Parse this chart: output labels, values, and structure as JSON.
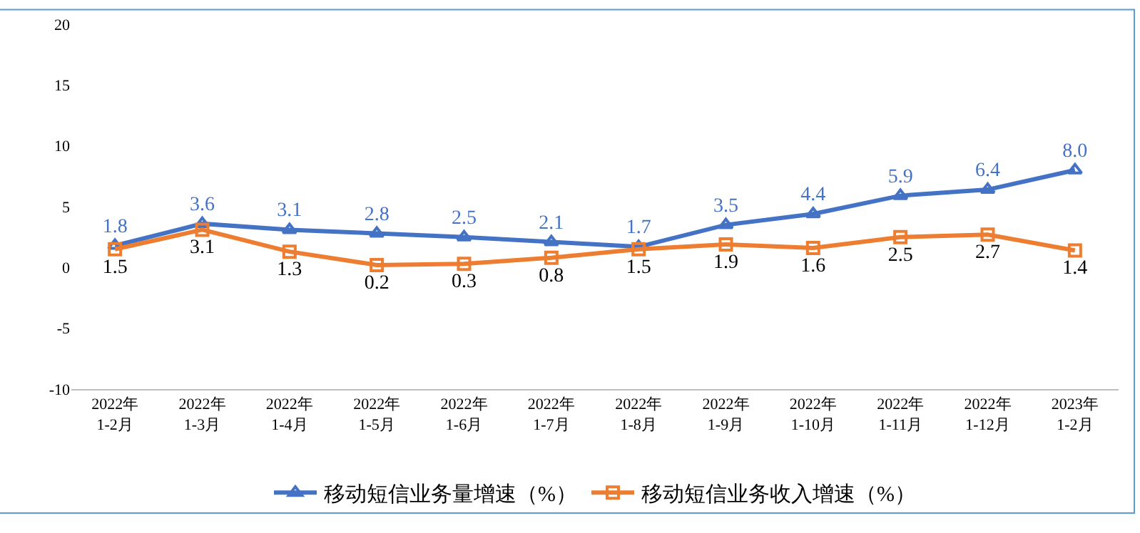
{
  "chart_data": {
    "type": "line",
    "categories": [
      "2022年\n1-2月",
      "2022年\n1-3月",
      "2022年\n1-4月",
      "2022年\n1-5月",
      "2022年\n1-6月",
      "2022年\n1-7月",
      "2022年\n1-8月",
      "2022年\n1-9月",
      "2022年\n1-10月",
      "2022年\n1-11月",
      "2022年\n1-12月",
      "2023年\n1-2月"
    ],
    "series": [
      {
        "name": "移动短信业务量增速（%）",
        "color": "#4472c4",
        "marker": "triangle",
        "values": [
          1.8,
          3.6,
          3.1,
          2.8,
          2.5,
          2.1,
          1.7,
          3.5,
          4.4,
          5.9,
          6.4,
          8.0
        ],
        "value_labels": [
          "1.8",
          "3.6",
          "3.1",
          "2.8",
          "2.5",
          "2.1",
          "1.7",
          "3.5",
          "4.4",
          "5.9",
          "6.4",
          "8.0"
        ]
      },
      {
        "name": "移动短信业务收入增速（%）",
        "color": "#ed7d31",
        "marker": "square",
        "values": [
          1.5,
          3.1,
          1.3,
          0.2,
          0.3,
          0.8,
          1.5,
          1.9,
          1.6,
          2.5,
          2.7,
          1.4
        ],
        "value_labels": [
          "1.5",
          "3.1",
          "1.3",
          "0.2",
          "0.3",
          "0.8",
          "1.5",
          "1.9",
          "1.6",
          "2.5",
          "2.7",
          "1.4"
        ]
      }
    ],
    "ylim": [
      -10,
      20
    ],
    "yticks": [
      -10,
      -5,
      0,
      5,
      10,
      15,
      20
    ],
    "legend": "bottom"
  }
}
